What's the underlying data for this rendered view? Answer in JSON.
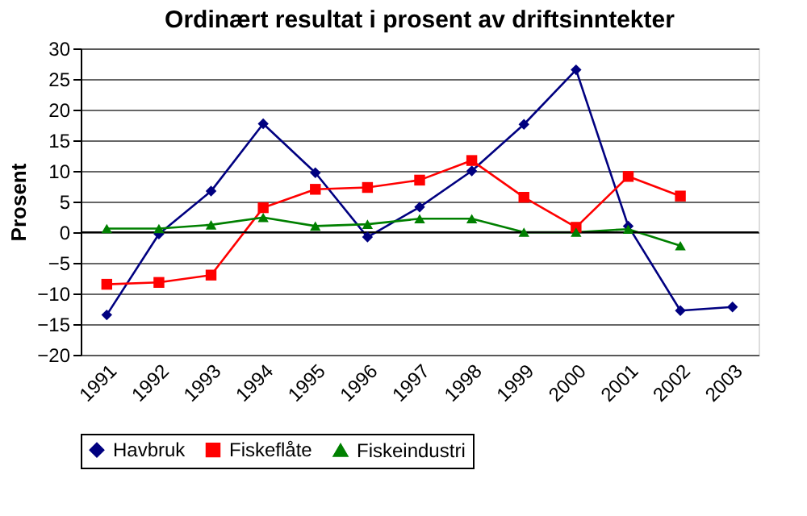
{
  "chart_data": {
    "type": "line",
    "title": "Ordinært resultat i prosent av driftsinntekter",
    "ylabel": "Prosent",
    "categories": [
      "1991",
      "1992",
      "1993",
      "1994",
      "1995",
      "1996",
      "1997",
      "1998",
      "1999",
      "2000",
      "2001",
      "2002",
      "2003"
    ],
    "series": [
      {
        "name": "Havbruk",
        "color": "#000080",
        "marker": "diamond",
        "values": [
          -13.5,
          -0.3,
          6.7,
          17.7,
          9.7,
          -0.8,
          4.1,
          10,
          17.6,
          26.5,
          1.0,
          -12.8,
          -12.2
        ]
      },
      {
        "name": "Fiskeflåte",
        "color": "#ff0000",
        "marker": "square",
        "values": [
          -8.5,
          -8.2,
          -7,
          4,
          7,
          7.3,
          8.5,
          11.7,
          5.7,
          0.8,
          9.1,
          5.9,
          null
        ]
      },
      {
        "name": "Fiskeindustri",
        "color": "#008000",
        "marker": "triangle",
        "values": [
          0.6,
          0.6,
          1.2,
          2.4,
          1.0,
          1.3,
          2.2,
          2.2,
          0,
          0,
          0.5,
          -2.2,
          null
        ]
      }
    ],
    "ylim": [
      -20,
      30
    ],
    "yticks": [
      -20,
      -15,
      -10,
      -5,
      0,
      5,
      10,
      15,
      20,
      25,
      30
    ],
    "grid": "y",
    "legend": "bottom",
    "line_style": "solid"
  }
}
